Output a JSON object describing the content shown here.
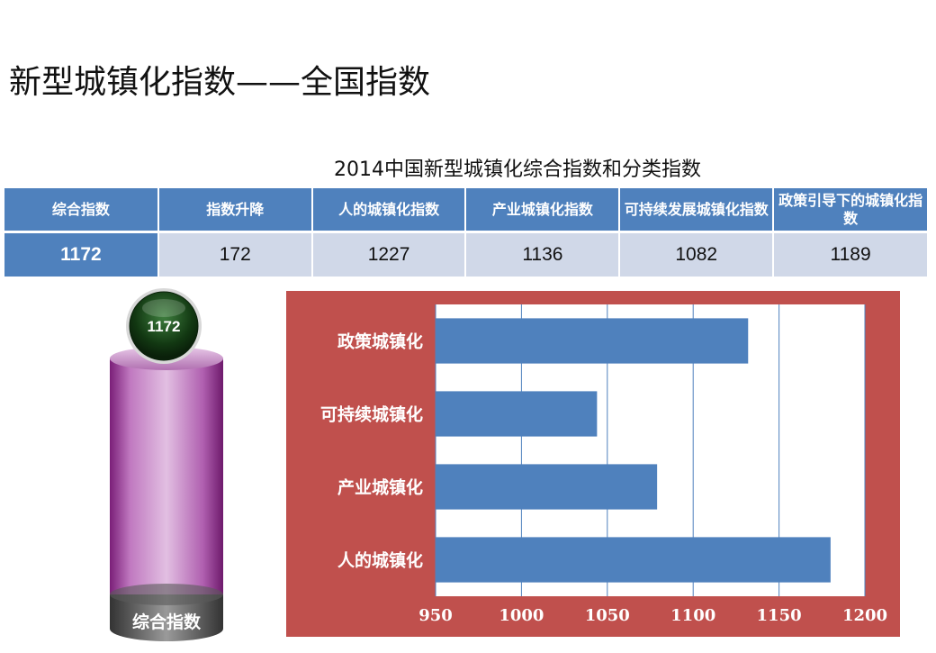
{
  "page_title": "新型城镇化指数——全国指数",
  "table": {
    "title": "2014中国新型城镇化综合指数和分类指数",
    "headers": [
      "综合指数",
      "指数升降",
      "人的城镇化指数",
      "产业城镇化指数",
      "可持续发展城镇化指数",
      "政策引导下的城镇化指数"
    ],
    "values": [
      "1172",
      "172",
      "1227",
      "1136",
      "1082",
      "1189"
    ]
  },
  "cylinder": {
    "value_label": "1172",
    "base_label": "综合指数"
  },
  "colors": {
    "header_blue": "#4f81bd",
    "row_light": "#d0d8e8",
    "bar_blue": "#4f81bd",
    "panel_red": "#c0504d",
    "cylinder_purple": "#9b3d96",
    "badge_green": "#1f4d1f"
  },
  "chart_data": {
    "type": "bar",
    "orientation": "horizontal",
    "categories": [
      "政策城镇化",
      "可持续城镇化",
      "产业城镇化",
      "人的城镇化"
    ],
    "values": [
      1132,
      1044,
      1079,
      1180
    ],
    "xlim": [
      950,
      1200
    ],
    "xticks": [
      950,
      1000,
      1050,
      1100,
      1150,
      1200
    ],
    "grid": true,
    "legend": "none"
  }
}
